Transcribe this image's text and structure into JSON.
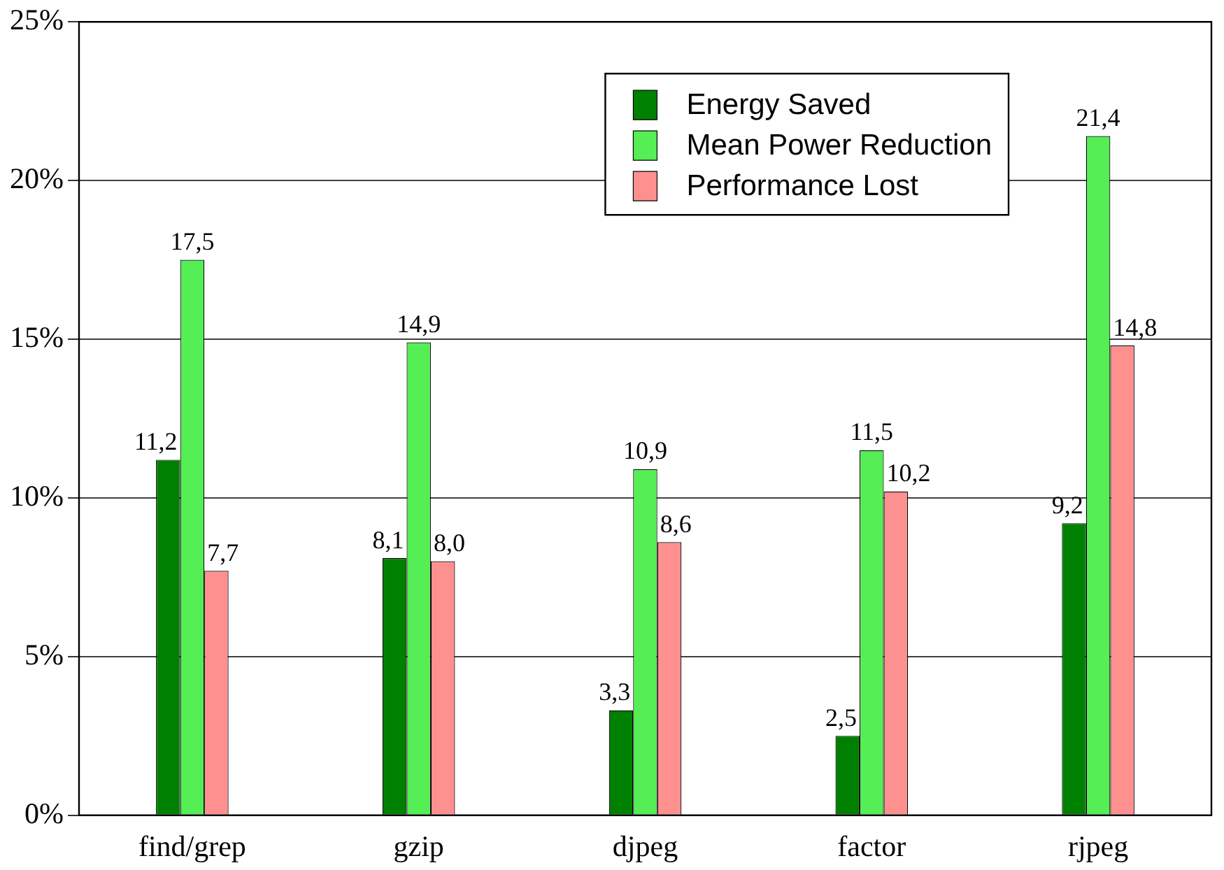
{
  "chart_data": {
    "type": "bar",
    "categories": [
      "find/grep",
      "gzip",
      "djpeg",
      "factor",
      "rjpeg"
    ],
    "series": [
      {
        "name": "Energy Saved",
        "color": "#008000",
        "values": [
          11.2,
          8.1,
          3.3,
          2.5,
          9.2
        ],
        "value_labels": [
          "11,2",
          "8,1",
          "3,3",
          "2,5",
          "9,2"
        ]
      },
      {
        "name": "Mean Power Reduction",
        "color": "#55ee55",
        "values": [
          17.5,
          14.9,
          10.9,
          11.5,
          21.4
        ],
        "value_labels": [
          "17,5",
          "14,9",
          "10,9",
          "11,5",
          "21,4"
        ]
      },
      {
        "name": "Performance Lost",
        "color": "#ff9090",
        "values": [
          7.7,
          8.0,
          8.6,
          10.2,
          14.8
        ],
        "value_labels": [
          "7,7",
          "8,0",
          "8,6",
          "10,2",
          "14,8"
        ]
      }
    ],
    "ylim": [
      0,
      25
    ],
    "yticks": [
      {
        "value": 0,
        "label": "0%"
      },
      {
        "value": 5,
        "label": "5%"
      },
      {
        "value": 10,
        "label": "10%"
      },
      {
        "value": 15,
        "label": "15%"
      },
      {
        "value": 20,
        "label": "20%"
      },
      {
        "value": 25,
        "label": "25%"
      }
    ],
    "grid": "y",
    "legend": "top right"
  }
}
